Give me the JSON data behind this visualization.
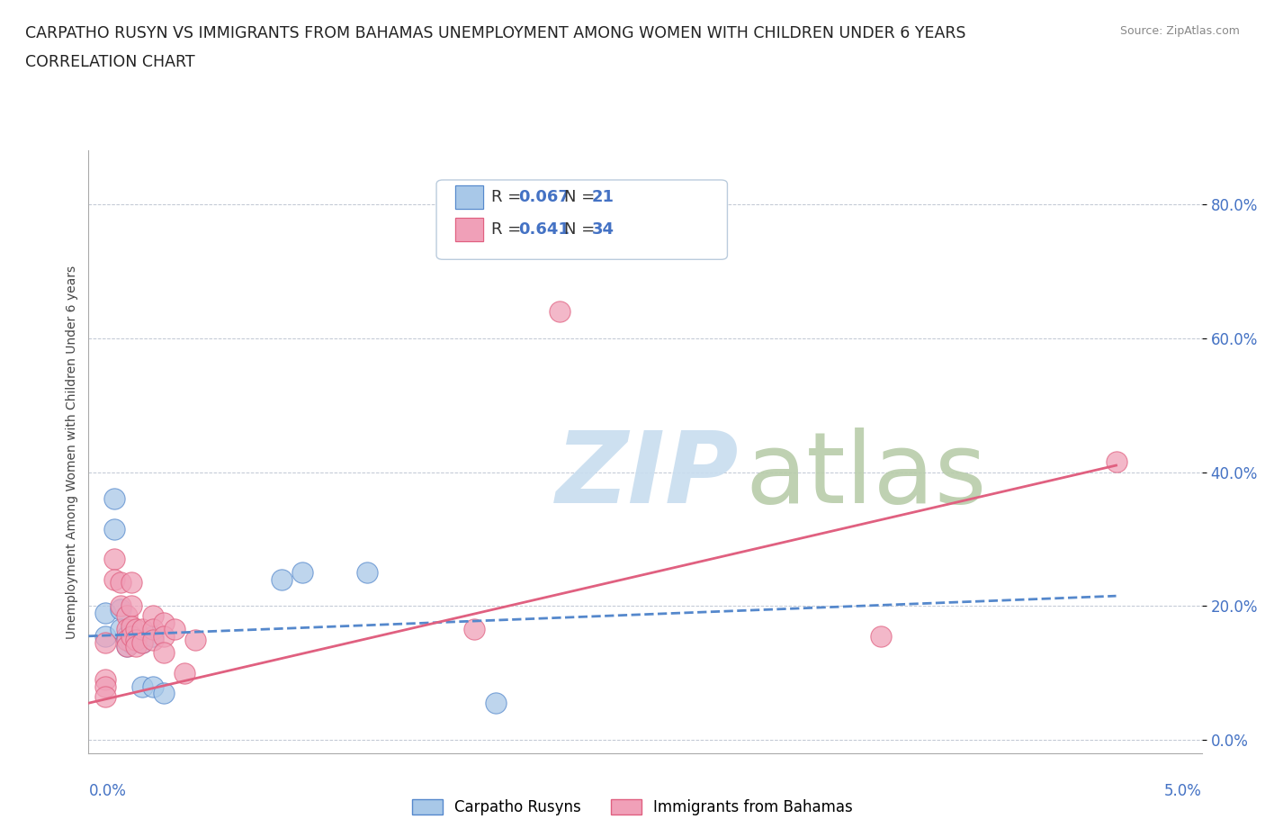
{
  "title_line1": "CARPATHO RUSYN VS IMMIGRANTS FROM BAHAMAS UNEMPLOYMENT AMONG WOMEN WITH CHILDREN UNDER 6 YEARS",
  "title_line2": "CORRELATION CHART",
  "source": "Source: ZipAtlas.com",
  "ylabel": "Unemployment Among Women with Children Under 6 years",
  "yticks": [
    "0.0%",
    "20.0%",
    "40.0%",
    "60.0%",
    "80.0%"
  ],
  "ytick_vals": [
    0.0,
    0.2,
    0.4,
    0.6,
    0.8
  ],
  "xtick_left": "0.0%",
  "xtick_right": "5.0%",
  "xlim": [
    0.0,
    0.052
  ],
  "ylim": [
    -0.02,
    0.88
  ],
  "legend1_R": "0.067",
  "legend1_N": "21",
  "legend2_R": "0.641",
  "legend2_N": "34",
  "legend1_name": "Carpatho Rusyns",
  "legend2_name": "Immigrants from Bahamas",
  "color_blue": "#a8c8e8",
  "color_pink": "#f0a0b8",
  "color_blue_line": "#5588cc",
  "color_pink_line": "#e06080",
  "color_blue_text": "#4472c4",
  "grid_color": "#b0b8c8",
  "background_color": "#ffffff",
  "blue_dots": [
    [
      0.0008,
      0.19
    ],
    [
      0.0008,
      0.155
    ],
    [
      0.0012,
      0.36
    ],
    [
      0.0012,
      0.315
    ],
    [
      0.0015,
      0.195
    ],
    [
      0.0015,
      0.165
    ],
    [
      0.0018,
      0.155
    ],
    [
      0.0018,
      0.15
    ],
    [
      0.0018,
      0.14
    ],
    [
      0.002,
      0.155
    ],
    [
      0.002,
      0.145
    ],
    [
      0.0022,
      0.15
    ],
    [
      0.0025,
      0.145
    ],
    [
      0.0025,
      0.08
    ],
    [
      0.003,
      0.155
    ],
    [
      0.003,
      0.08
    ],
    [
      0.0035,
      0.07
    ],
    [
      0.009,
      0.24
    ],
    [
      0.01,
      0.25
    ],
    [
      0.013,
      0.25
    ],
    [
      0.019,
      0.055
    ]
  ],
  "pink_dots": [
    [
      0.0008,
      0.145
    ],
    [
      0.0008,
      0.09
    ],
    [
      0.0008,
      0.08
    ],
    [
      0.0008,
      0.065
    ],
    [
      0.0012,
      0.27
    ],
    [
      0.0012,
      0.24
    ],
    [
      0.0015,
      0.235
    ],
    [
      0.0015,
      0.2
    ],
    [
      0.0018,
      0.185
    ],
    [
      0.0018,
      0.165
    ],
    [
      0.0018,
      0.15
    ],
    [
      0.0018,
      0.14
    ],
    [
      0.002,
      0.235
    ],
    [
      0.002,
      0.2
    ],
    [
      0.002,
      0.17
    ],
    [
      0.002,
      0.155
    ],
    [
      0.0022,
      0.165
    ],
    [
      0.0022,
      0.15
    ],
    [
      0.0022,
      0.14
    ],
    [
      0.0025,
      0.165
    ],
    [
      0.0025,
      0.145
    ],
    [
      0.003,
      0.185
    ],
    [
      0.003,
      0.165
    ],
    [
      0.003,
      0.15
    ],
    [
      0.0035,
      0.175
    ],
    [
      0.0035,
      0.155
    ],
    [
      0.0035,
      0.13
    ],
    [
      0.004,
      0.165
    ],
    [
      0.0045,
      0.1
    ],
    [
      0.005,
      0.15
    ],
    [
      0.018,
      0.165
    ],
    [
      0.022,
      0.64
    ],
    [
      0.037,
      0.155
    ],
    [
      0.048,
      0.415
    ]
  ],
  "blue_trend_x": [
    0.0,
    0.048
  ],
  "blue_trend_y": [
    0.155,
    0.215
  ],
  "pink_trend_x": [
    0.0,
    0.048
  ],
  "pink_trend_y": [
    0.055,
    0.41
  ],
  "watermark_zip_color": "#c8ddef",
  "watermark_atlas_color": "#b8ccaa"
}
